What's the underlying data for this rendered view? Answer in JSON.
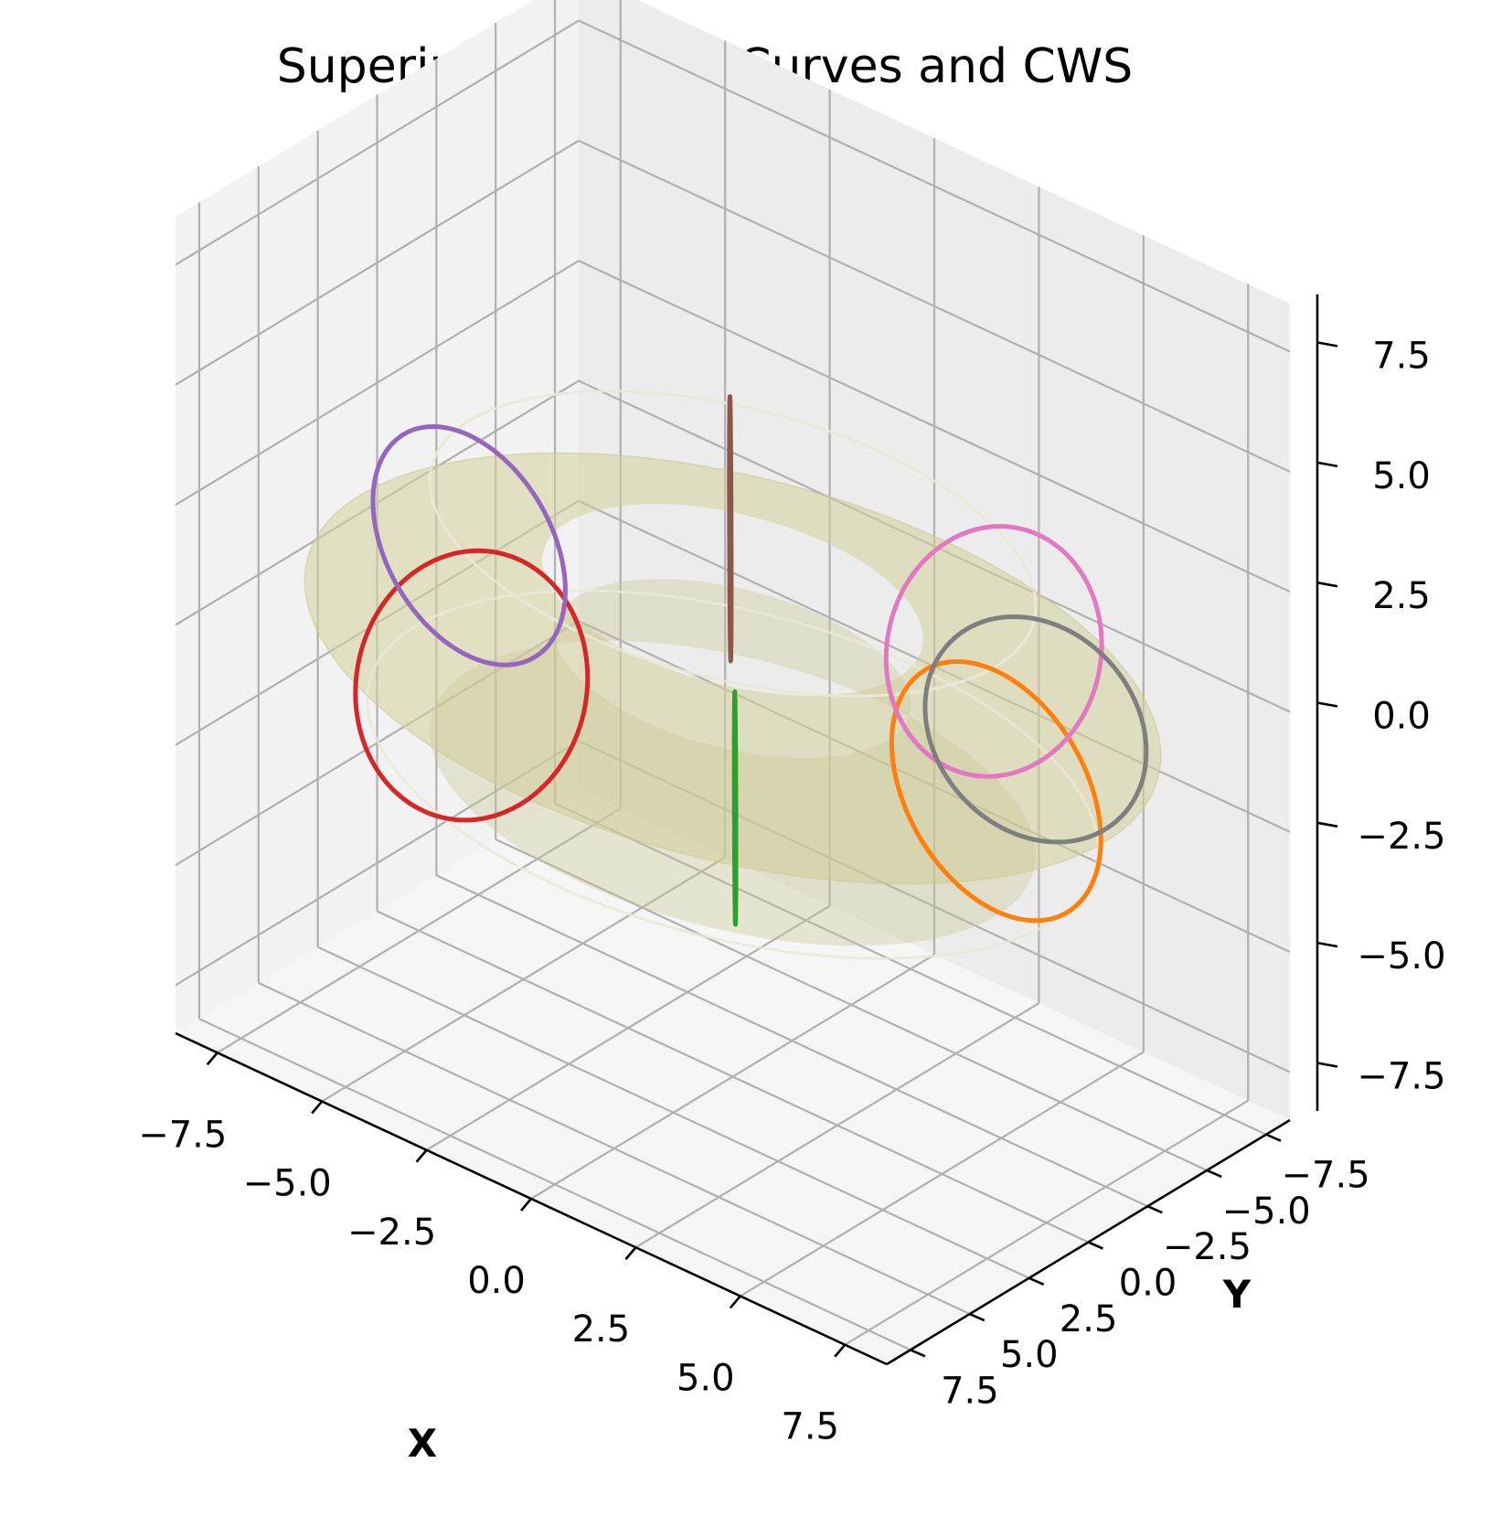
{
  "chart_data": {
    "type": "3d-line-surface",
    "title": "Superimposed Coil Curves and CWS",
    "xlabel": "X",
    "ylabel": "Y",
    "zlabel": "",
    "xlim": [
      -8.5,
      8.5
    ],
    "ylim": [
      -8.5,
      8.5
    ],
    "zlim": [
      -8.5,
      8.5
    ],
    "ticks": {
      "x": [
        -7.5,
        -5.0,
        -2.5,
        0.0,
        2.5,
        5.0,
        7.5
      ],
      "x_labels": [
        "−7.5",
        "−5.0",
        "−2.5",
        "0.0",
        "2.5",
        "5.0",
        "7.5"
      ],
      "y": [
        -7.5,
        -5.0,
        -2.5,
        0.0,
        2.5,
        5.0,
        7.5
      ],
      "y_labels": [
        "−7.5",
        "−5.0",
        "−2.5",
        "0.0",
        "2.5",
        "5.0",
        "7.5"
      ],
      "z": [
        -7.5,
        -5.0,
        -2.5,
        0.0,
        2.5,
        5.0,
        7.5
      ],
      "z_labels": [
        "−7.5",
        "−5.0",
        "−2.5",
        "0.0",
        "2.5",
        "5.0",
        "7.5"
      ]
    },
    "grid": true,
    "surface": {
      "shape": "torus",
      "major_radius": 6.3,
      "minor_radius": 2.6,
      "color": "#e8e6a8"
    },
    "coils": [
      {
        "angle_deg": 0,
        "radius": 2.5,
        "color": "#ff7f0e"
      },
      {
        "angle_deg": 60,
        "radius": 2.2,
        "color": "#2ca02c"
      },
      {
        "angle_deg": 120,
        "radius": 2.8,
        "color": "#d62728"
      },
      {
        "angle_deg": 180,
        "radius": 2.3,
        "color": "#9467bd"
      },
      {
        "angle_deg": 240,
        "radius": 2.5,
        "color": "#8c564b"
      },
      {
        "angle_deg": 300,
        "radius": 2.6,
        "color": "#e377c2"
      },
      {
        "angle_deg": 330,
        "radius": 2.3,
        "color": "#7f7f7f"
      }
    ]
  }
}
